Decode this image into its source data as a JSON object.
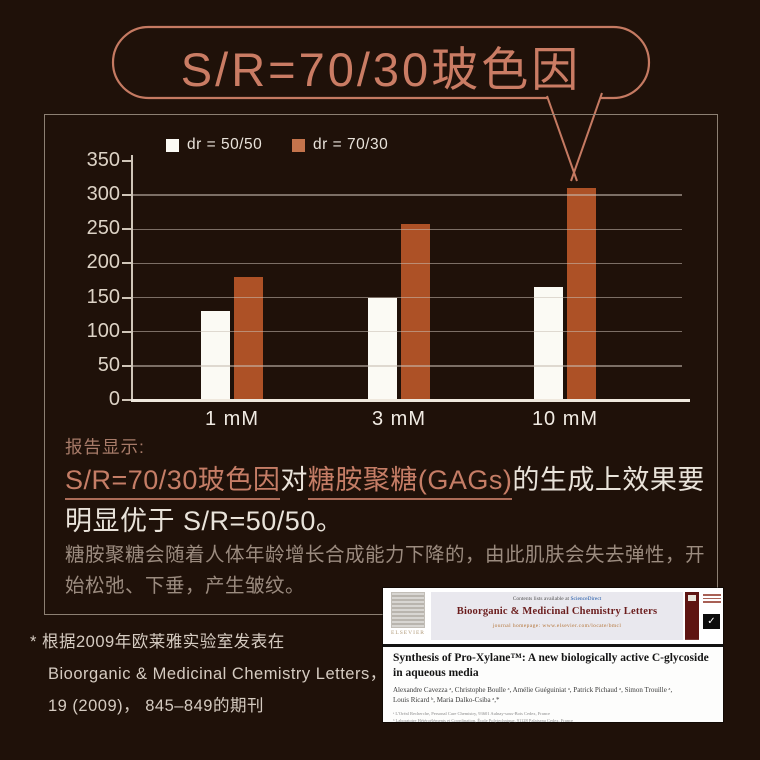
{
  "title_bubble": {
    "text": "S/R=70/30玻色因"
  },
  "chart_data": {
    "type": "bar",
    "categories": [
      "1 mM",
      "3 mM",
      "10 mM"
    ],
    "series": [
      {
        "name": "dr = 50/50",
        "color": "#fbfaf4",
        "values": [
          130,
          150,
          165
        ]
      },
      {
        "name": "dr = 70/30",
        "color": "#ad5126",
        "legend_color": "#c4744c",
        "values": [
          180,
          258,
          310
        ]
      }
    ],
    "title": "",
    "xlabel": "",
    "ylabel": "",
    "ylim": [
      0,
      350
    ],
    "ytick_step": 50,
    "grid": true,
    "legend_position": "top"
  },
  "report": {
    "label": "报告显示:",
    "statement": [
      {
        "text": "S/R=70/30玻色因",
        "emph": true
      },
      {
        "text": "对",
        "emph": false
      },
      {
        "text": "糖胺聚糖(GAGs)",
        "emph": true
      },
      {
        "text": "的生成上效果要明显优于 S/R=50/50。",
        "emph": false
      }
    ],
    "note": "糖胺聚糖会随着人体年龄增长合成能力下降的，由此肌肤会失去弹性，开始松弛、下垂，产生皱纹。"
  },
  "footnote": {
    "lines": [
      "* 根据2009年欧莱雅实验室发表在",
      "Bioorganic & Medicinal Chemistry Letters，",
      "19 (2009)， 845–849的期刊"
    ]
  },
  "journal": {
    "contents_line": "Contents lists available at",
    "sciencedirect": "ScienceDirect",
    "journal_title": "Bioorganic & Medicinal Chemistry Letters",
    "homepage_line": "journal homepage: www.elsevier.com/locate/bmcl",
    "publisher": "ELSEVIER",
    "mark_glyph": "✓",
    "paper_title_line1": "Synthesis of Pro-Xylane™: A new biologically active C-glycoside",
    "paper_title_line2": "in aqueous media",
    "authors_line1": "Alexandre Cavezza ᵃ, Christophe Boulle ᵃ, Amélie Guéguiniat ᵃ, Patrick Pichaud ᵃ, Simon Trouille ᵃ,",
    "authors_line2": "Louis Ricard ᵇ, Maria Dalko-Csiba ᵃ,*",
    "affil_line1": "ᵃ L'Oréal Recherche, Personal Care Chemistry, 93601 Aulnay-sous-Bois Cedex, France",
    "affil_line2": "ᵇ Laboratoire Hétéroéléments et Coordination, École Polytechnique, 91128 Palaiseau Cedex, France"
  },
  "colors": {
    "background": "#1f1109",
    "accent_salmon": "#ca7c64",
    "box_border": "#8c8073",
    "grid_line": "#c8beb3",
    "bar_white": "#fbfaf4",
    "bar_brown": "#ad5126",
    "text_white": "#e9e3da",
    "text_gray": "#9b8b7f"
  }
}
